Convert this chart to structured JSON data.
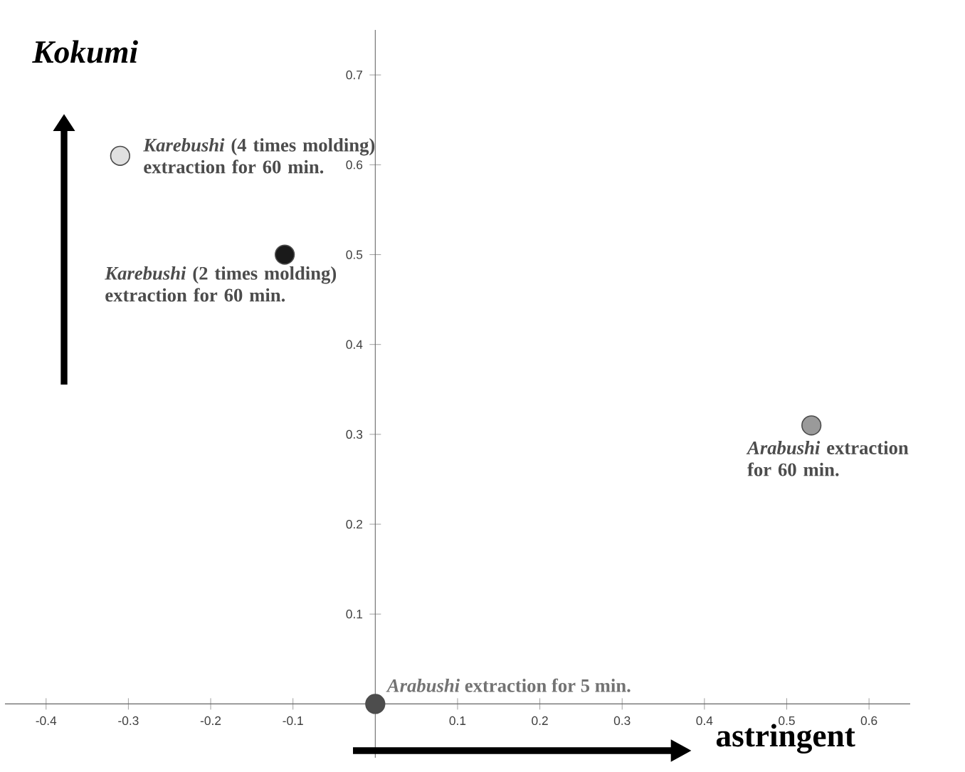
{
  "chart_data": {
    "type": "scatter",
    "xlabel": "astringent",
    "ylabel": "Kokumi",
    "xlim": [
      -0.45,
      0.65
    ],
    "ylim": [
      -0.06,
      0.75
    ],
    "xticks": [
      -0.4,
      -0.3,
      -0.2,
      -0.1,
      0.1,
      0.2,
      0.3,
      0.4,
      0.5,
      0.6
    ],
    "yticks": [
      0.1,
      0.2,
      0.3,
      0.4,
      0.5,
      0.6,
      0.7
    ],
    "grid": false,
    "marker": "circle",
    "series": [
      {
        "color": "#e0e0e0",
        "x": [
          -0.31
        ],
        "values": [
          0.61
        ]
      },
      {
        "color": "#1a1a1a",
        "x": [
          -0.11
        ],
        "values": [
          0.5
        ]
      },
      {
        "color": "#9a9a9a",
        "x": [
          0.53
        ],
        "values": [
          0.31
        ]
      },
      {
        "color": "#4d4d4d",
        "x": [
          0
        ],
        "values": [
          0
        ]
      }
    ],
    "annotations": [
      {
        "text": "*Karebushi* (4 times molding) extraction for 60 min.",
        "x": -0.31,
        "y": 0.61
      },
      {
        "text": "*Karebushi* (2 times molding) extraction for 60 min.",
        "x": -0.11,
        "y": 0.5
      },
      {
        "text": "*Arabushi* extraction for 60 min.",
        "x": 0.53,
        "y": 0.31
      },
      {
        "text": "*Arabushi* extraction for 5 min.",
        "x": 0,
        "y": 0
      }
    ]
  }
}
